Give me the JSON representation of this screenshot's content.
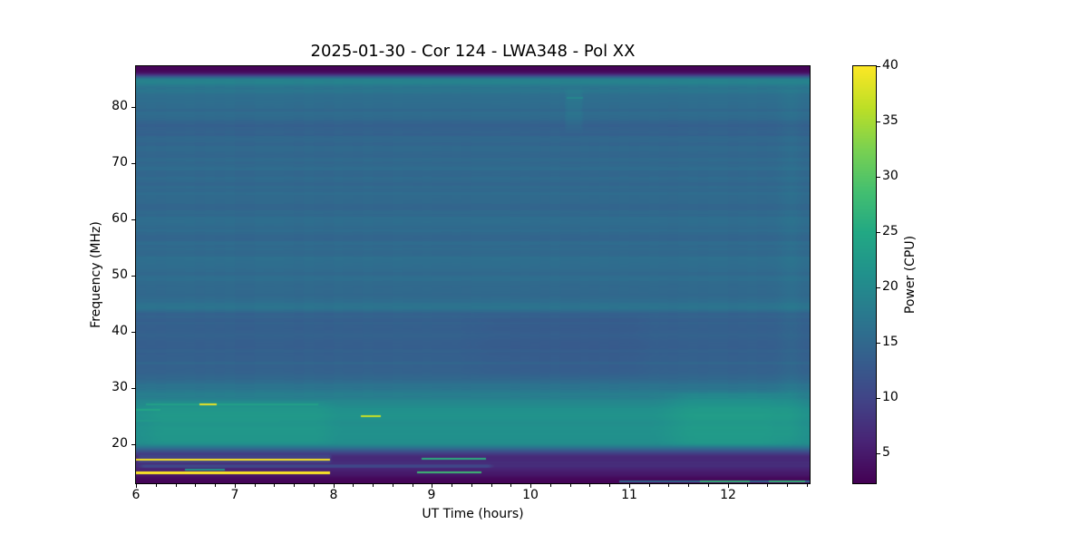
{
  "title": "2025-01-30 - Cor 124 - LWA348 - Pol XX",
  "xlabel": "UT Time (hours)",
  "ylabel": "Frequency (MHz)",
  "colorbar": {
    "label": "Power (CPU)",
    "vmin": 2.3,
    "vmax": 40,
    "ticks": [
      5,
      10,
      15,
      20,
      25,
      30,
      35,
      40
    ]
  },
  "chart_data": {
    "type": "heatmap",
    "subtype": "radio-dynamic-spectrum",
    "title": "2025-01-30 - Cor 124 - LWA348 - Pol XX",
    "xlabel": "UT Time (hours)",
    "ylabel": "Frequency (MHz)",
    "value_label": "Power (CPU)",
    "colormap": "viridis",
    "grid": false,
    "x_range": [
      6.0,
      12.83
    ],
    "x_major_ticks": [
      6,
      7,
      8,
      9,
      10,
      11,
      12
    ],
    "x_minor_step": 0.2,
    "y_range": [
      13.0,
      87.3
    ],
    "y_major_ticks": [
      20,
      30,
      40,
      50,
      60,
      70,
      80
    ],
    "value_range": [
      2.3,
      40
    ],
    "viridis_stops": [
      "#440154",
      "#482475",
      "#414487",
      "#355f8d",
      "#2a788e",
      "#21918c",
      "#22a884",
      "#44bf70",
      "#7ad151",
      "#bddf26",
      "#fde725"
    ],
    "background_profile": [
      [
        13.0,
        2.9
      ],
      [
        13.8,
        3.4
      ],
      [
        14.4,
        4.4
      ],
      [
        15.0,
        5.4
      ],
      [
        15.6,
        6.2
      ],
      [
        16.0,
        7.0
      ],
      [
        16.4,
        7.0
      ],
      [
        16.9,
        6.6
      ],
      [
        17.4,
        6.6
      ],
      [
        17.9,
        7.6
      ],
      [
        18.4,
        10.0
      ],
      [
        18.9,
        13.5
      ],
      [
        19.4,
        17.0
      ],
      [
        20.0,
        19.8
      ],
      [
        21.0,
        20.8
      ],
      [
        22.5,
        21.2
      ],
      [
        24.0,
        21.0
      ],
      [
        25.5,
        21.2
      ],
      [
        26.5,
        20.8
      ],
      [
        27.5,
        20.0
      ],
      [
        28.5,
        18.6
      ],
      [
        29.5,
        17.2
      ],
      [
        31.0,
        15.6
      ],
      [
        33.0,
        14.6
      ],
      [
        35.0,
        14.1
      ],
      [
        38.0,
        13.9
      ],
      [
        41.0,
        14.0
      ],
      [
        43.2,
        14.4
      ],
      [
        43.8,
        16.2
      ],
      [
        44.8,
        16.4
      ],
      [
        46.0,
        15.6
      ],
      [
        48.0,
        15.3
      ],
      [
        50.0,
        15.2
      ],
      [
        52.5,
        15.8
      ],
      [
        54.0,
        15.3
      ],
      [
        57.0,
        15.1
      ],
      [
        60.0,
        15.4
      ],
      [
        63.0,
        15.1
      ],
      [
        66.0,
        15.0
      ],
      [
        69.0,
        15.2
      ],
      [
        72.0,
        15.0
      ],
      [
        74.5,
        14.6
      ],
      [
        76.0,
        13.9
      ],
      [
        77.0,
        14.3
      ],
      [
        78.5,
        15.0
      ],
      [
        80.0,
        15.4
      ],
      [
        81.5,
        15.8
      ],
      [
        82.5,
        16.2
      ],
      [
        83.5,
        17.2
      ],
      [
        84.3,
        18.6
      ],
      [
        84.9,
        18.8
      ],
      [
        85.3,
        15.0
      ],
      [
        85.7,
        9.0
      ],
      [
        86.1,
        4.5
      ],
      [
        86.5,
        2.9
      ],
      [
        87.3,
        2.7
      ]
    ],
    "row_noise_bands": [
      {
        "f_min": 85.2,
        "f_max": 88.0,
        "amp": 0.0
      },
      {
        "f_min": 28.0,
        "f_max": 85.2,
        "amp": 0.5
      },
      {
        "f_min": 19.0,
        "f_max": 28.0,
        "amp": 0.3
      },
      {
        "f_min": 13.9,
        "f_max": 19.0,
        "amp": 0.35
      },
      {
        "f_min": 12.0,
        "f_max": 13.9,
        "amp": 0.15
      }
    ],
    "col_noise": {
      "amp": 0.12,
      "f_min": 28,
      "f_max": 85,
      "t_cell": 0.1
    },
    "region_modifiers": [
      {
        "f0": 16.5,
        "f1": 18.2,
        "t0": 6.0,
        "t1": 8.0,
        "dv": 2.8,
        "sf": 0.3,
        "st": 0.05
      },
      {
        "f0": 15.7,
        "f1": 16.4,
        "t0": 6.0,
        "t1": 9.65,
        "dv": 3.2,
        "sf": 0.15,
        "st": 0.1
      },
      {
        "f0": 19.3,
        "f1": 29.5,
        "t0": 11.2,
        "t1": 12.83,
        "dv": 1.6,
        "sf": 1.0,
        "st": 0.5
      },
      {
        "f0": 19.5,
        "f1": 28.0,
        "t0": 6.0,
        "t1": 8.1,
        "dv": 1.0,
        "sf": 1.0,
        "st": 0.3
      },
      {
        "f0": 31.0,
        "f1": 44.0,
        "t0": 9.2,
        "t1": 11.4,
        "dv": -0.5,
        "sf": 2.0,
        "st": 0.5
      },
      {
        "f0": 75.0,
        "f1": 84.0,
        "t0": 10.33,
        "t1": 10.55,
        "dv": 1.2,
        "sf": 2.0,
        "st": 0.05
      },
      {
        "f0": 19.0,
        "f1": 85.0,
        "t0": 12.45,
        "t1": 12.83,
        "dv": 0.7,
        "sf": 3.0,
        "st": 0.2
      }
    ],
    "rfi_lines": [
      {
        "f": 17.25,
        "hw": 0.18,
        "t0": 6.0,
        "t1": 7.97,
        "v": 40.0
      },
      {
        "f": 14.85,
        "hw": 0.18,
        "t0": 6.0,
        "t1": 7.97,
        "v": 40.0
      },
      {
        "f": 27.1,
        "hw": 0.15,
        "t0": 6.64,
        "t1": 6.82,
        "v": 39.0
      },
      {
        "f": 24.95,
        "hw": 0.15,
        "t0": 8.28,
        "t1": 8.48,
        "v": 37.0
      },
      {
        "f": 27.1,
        "hw": 0.13,
        "t0": 6.1,
        "t1": 7.85,
        "v": 23.5
      },
      {
        "f": 26.1,
        "hw": 0.13,
        "t0": 6.0,
        "t1": 6.25,
        "v": 24.5
      },
      {
        "f": 24.1,
        "hw": 0.13,
        "t0": 6.0,
        "t1": 7.45,
        "v": 22.5
      },
      {
        "f": 25.6,
        "hw": 0.12,
        "t0": 6.55,
        "t1": 7.3,
        "v": 22.5
      },
      {
        "f": 17.3,
        "hw": 0.15,
        "t0": 8.9,
        "t1": 9.55,
        "v": 26.0
      },
      {
        "f": 14.9,
        "hw": 0.15,
        "t0": 8.85,
        "t1": 9.5,
        "v": 28.0
      },
      {
        "f": 15.4,
        "hw": 0.14,
        "t0": 6.5,
        "t1": 6.9,
        "v": 22.0
      },
      {
        "f": 13.35,
        "hw": 0.14,
        "t0": 10.9,
        "t1": 12.83,
        "v": 15.0
      },
      {
        "f": 13.35,
        "hw": 0.14,
        "t0": 11.72,
        "t1": 12.22,
        "v": 27.0
      },
      {
        "f": 13.35,
        "hw": 0.14,
        "t0": 12.42,
        "t1": 12.78,
        "v": 27.0
      },
      {
        "f": 81.6,
        "hw": 0.13,
        "t0": 10.37,
        "t1": 10.53,
        "v": 19.5
      }
    ]
  }
}
